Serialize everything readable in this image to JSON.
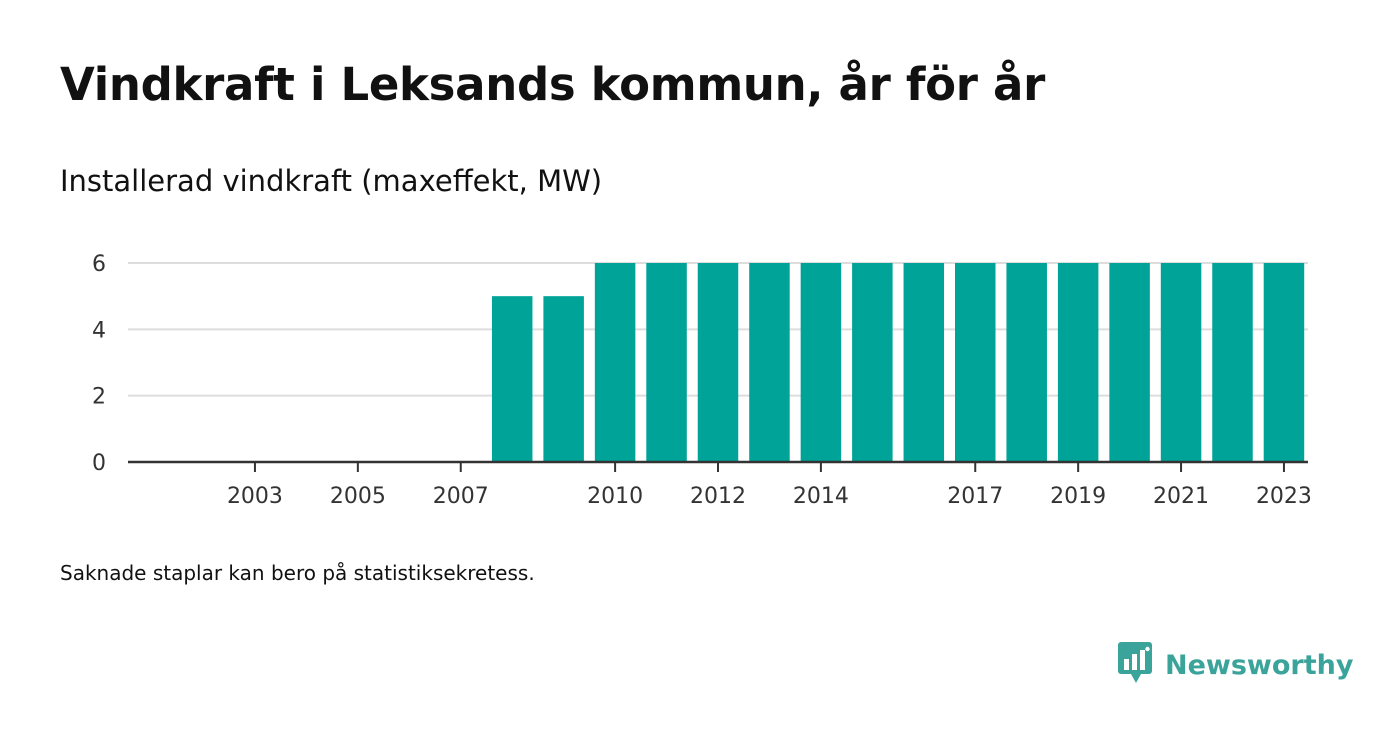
{
  "title": "Vindkraft i Leksands kommun, år för år",
  "subtitle": "Installerad vindkraft (maxeffekt, MW)",
  "footnote": "Saknade staplar kan bero på statistiksekretess.",
  "brand": {
    "name": "Newsworthy",
    "color": "#3aa39a",
    "icon": "bar-chart-speech-bubble-icon"
  },
  "colors": {
    "bar": "#00a398",
    "grid": "#dddddd",
    "axis": "#333333",
    "text": "#111111"
  },
  "chart_data": {
    "type": "bar",
    "categories": [
      "2002",
      "2003",
      "2004",
      "2005",
      "2006",
      "2007",
      "2008",
      "2009",
      "2010",
      "2011",
      "2012",
      "2013",
      "2014",
      "2015",
      "2016",
      "2017",
      "2018",
      "2019",
      "2020",
      "2021",
      "2022",
      "2023"
    ],
    "values": [
      null,
      null,
      null,
      null,
      null,
      null,
      5,
      5,
      6,
      6,
      6,
      6,
      6,
      6,
      6,
      6,
      6,
      6,
      6,
      6,
      6,
      6
    ],
    "x_tick_labels": [
      "2003",
      "2005",
      "2007",
      "2010",
      "2012",
      "2014",
      "2017",
      "2019",
      "2021",
      "2023"
    ],
    "y_ticks": [
      0,
      2,
      4,
      6
    ],
    "ylim": [
      0,
      6
    ],
    "title": "Vindkraft i Leksands kommun, år för år",
    "subtitle": "Installerad vindkraft (maxeffekt, MW)",
    "xlabel": "",
    "ylabel": "",
    "grid": true,
    "legend": "none"
  }
}
